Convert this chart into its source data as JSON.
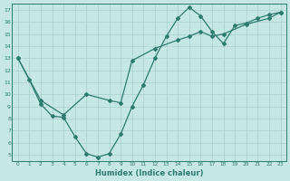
{
  "line1_x": [
    0,
    1,
    2,
    3,
    4,
    5,
    6,
    7,
    8,
    9,
    10,
    11,
    12,
    13,
    14,
    15,
    16,
    17,
    18,
    19,
    20,
    21,
    22,
    23
  ],
  "line1_y": [
    13.0,
    11.2,
    9.2,
    8.2,
    8.1,
    6.5,
    5.1,
    4.8,
    5.1,
    6.7,
    9.0,
    10.8,
    13.0,
    14.8,
    16.3,
    17.2,
    16.5,
    15.2,
    14.2,
    15.7,
    15.9,
    16.3,
    16.6,
    16.8
  ],
  "line2_x": [
    0,
    2,
    4,
    6,
    8,
    9,
    10,
    12,
    14,
    15,
    16,
    17,
    18,
    20,
    22,
    23
  ],
  "line2_y": [
    13.0,
    9.5,
    8.3,
    10.0,
    9.5,
    9.3,
    12.8,
    13.8,
    14.5,
    14.8,
    15.2,
    14.8,
    15.0,
    15.8,
    16.3,
    16.8
  ],
  "color": "#2d7b6e",
  "bg_color": "#c5e8e5",
  "grid_color": "#a8d0cc",
  "xlabel": "Humidex (Indice chaleur)",
  "xlim": [
    -0.5,
    23.5
  ],
  "ylim": [
    4.5,
    17.5
  ],
  "xticks": [
    0,
    1,
    2,
    3,
    4,
    5,
    6,
    7,
    8,
    9,
    10,
    11,
    12,
    13,
    14,
    15,
    16,
    17,
    18,
    19,
    20,
    21,
    22,
    23
  ],
  "yticks": [
    5,
    6,
    7,
    8,
    9,
    10,
    11,
    12,
    13,
    14,
    15,
    16,
    17
  ],
  "xtick_labels": [
    "0",
    "1",
    "2",
    "3",
    "4",
    "5",
    "6",
    "7",
    "8",
    "9",
    "10",
    "11",
    "12",
    "13",
    "14",
    "15",
    "16",
    "17",
    "18",
    "19",
    "20",
    "21",
    "22",
    "23"
  ],
  "ytick_labels": [
    "5",
    "6",
    "7",
    "8",
    "9",
    "10",
    "11",
    "12",
    "13",
    "14",
    "15",
    "16",
    "17"
  ],
  "marker": "D",
  "marker_size": 2.0,
  "linewidth": 0.9
}
